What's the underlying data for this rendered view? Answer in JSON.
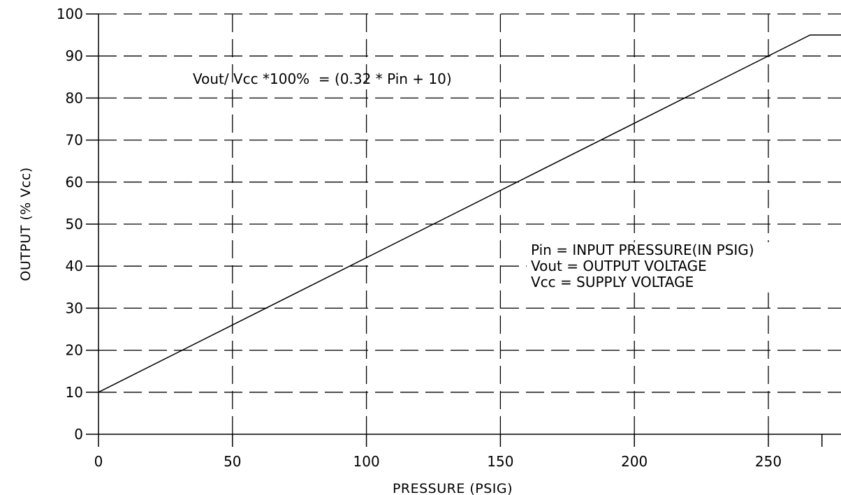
{
  "chart_data": {
    "type": "line",
    "title": "",
    "xlabel": "PRESSURE (PSIG)",
    "ylabel": "OUTPUT (% Vcc)",
    "xlim": [
      0,
      280
    ],
    "ylim": [
      0,
      100
    ],
    "x_ticks": [
      0,
      50,
      100,
      150,
      200,
      250
    ],
    "y_ticks": [
      0,
      10,
      20,
      30,
      40,
      50,
      60,
      70,
      80,
      90,
      100
    ],
    "x_tick_labels": [
      "0",
      "50",
      "100",
      "150",
      "200",
      "250"
    ],
    "y_tick_labels": [
      "0",
      "10",
      "20",
      "30",
      "40",
      "50",
      "60",
      "70",
      "80",
      "90",
      "100"
    ],
    "grid": true,
    "series": [
      {
        "x": [
          0,
          265.6,
          280
        ],
        "y": [
          10,
          95,
          95
        ]
      }
    ],
    "annotations": [
      "Vout/ Vcc *100%  = (0.32 * Pin + 10)",
      "Pin = INPUT PRESSURE(IN PSIG)",
      "Vout = OUTPUT VOLTAGE",
      "Vcc = SUPPLY VOLTAGE"
    ],
    "colors": {
      "line": "#000000",
      "grid": "#000000",
      "background": "#ffffff"
    }
  }
}
